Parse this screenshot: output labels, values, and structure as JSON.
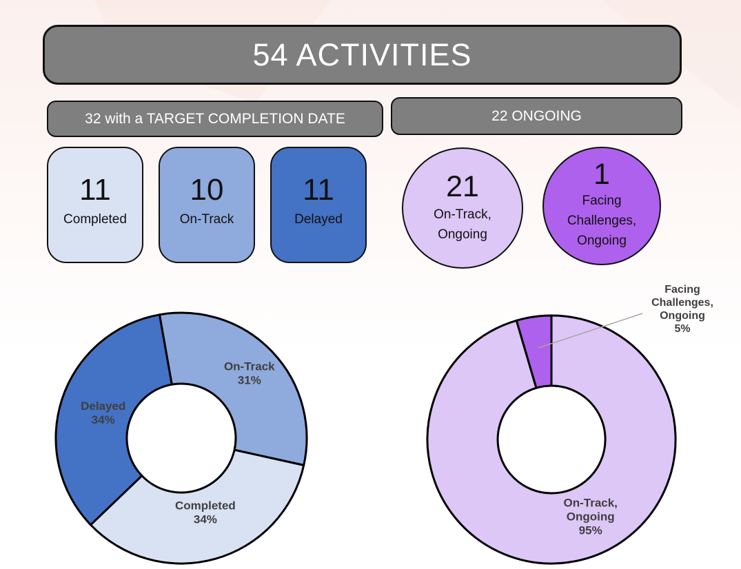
{
  "page": {
    "background_top_color": "#fbf0ed",
    "background_bottom_color": "#ffffff"
  },
  "header": {
    "title": "54 ACTIVITIES",
    "fill": "#7f7f7f",
    "text_color": "#ffffff"
  },
  "sections": {
    "dated": {
      "banner_label": "32 with a TARGET COMPLETION DATE",
      "banner_fill": "#7f7f7f",
      "cards": [
        {
          "value": "11",
          "label": "Completed",
          "color": "#d9e2f3"
        },
        {
          "value": "10",
          "label": "On-Track",
          "color": "#8faadc"
        },
        {
          "value": "11",
          "label": "Delayed",
          "color": "#4472c4"
        }
      ]
    },
    "ongoing": {
      "banner_label": "22 ONGOING",
      "banner_fill": "#7f7f7f",
      "circles": [
        {
          "value": "21",
          "label_lines": [
            "On-Track,",
            "Ongoing"
          ],
          "color": "#ddc7f6"
        },
        {
          "value": "1",
          "label_lines": [
            "Facing",
            "Challenges,",
            "Ongoing"
          ],
          "color": "#ae61ec"
        }
      ]
    }
  },
  "chart_data": [
    {
      "type": "pie",
      "variant": "donut",
      "categories": [
        "On-Track",
        "Completed",
        "Delayed"
      ],
      "values": [
        10,
        11,
        11
      ],
      "percent_labels": [
        "31%",
        "34%",
        "34%"
      ],
      "colors": [
        "#8faadc",
        "#d9e2f3",
        "#4472c4"
      ],
      "stroke_color": "#000000",
      "label_color": "#3f3f3f",
      "start_angle_deg": -10,
      "inner_radius_ratio": 0.43,
      "legend": "none",
      "slice_labels": [
        {
          "lines": [
            "On-Track",
            "31%"
          ],
          "placement": "inside",
          "angle_deg": 46.3,
          "r_factor": 0.56
        },
        {
          "lines": [
            "Completed",
            "34%"
          ],
          "placement": "inside",
          "angle_deg": 162.0,
          "r_factor": 0.33
        },
        {
          "lines": [
            "Delayed",
            "34%"
          ],
          "placement": "inside",
          "angle_deg": 288.1,
          "r_factor": 0.39
        }
      ]
    },
    {
      "type": "pie",
      "variant": "donut",
      "categories": [
        "On-Track, Ongoing",
        "Facing Challenges, Ongoing"
      ],
      "values": [
        21,
        1
      ],
      "percent_labels": [
        "95%",
        "5%"
      ],
      "colors": [
        "#ddc7f6",
        "#ae61ec"
      ],
      "stroke_color": "#000000",
      "label_color": "#3f3f3f",
      "leader_line_color": "#a6a6a6",
      "start_angle_deg": 0,
      "inner_radius_ratio": 0.43,
      "legend": "none",
      "slice_labels": [
        {
          "lines": [
            "On-Track,",
            "Ongoing",
            "95%"
          ],
          "placement": "inside",
          "angle_deg": 153.0,
          "r_factor": 0.46
        },
        {
          "lines": [
            "Facing",
            "Challenges,",
            "Ongoing",
            "5%"
          ],
          "placement": "outside"
        }
      ]
    }
  ]
}
